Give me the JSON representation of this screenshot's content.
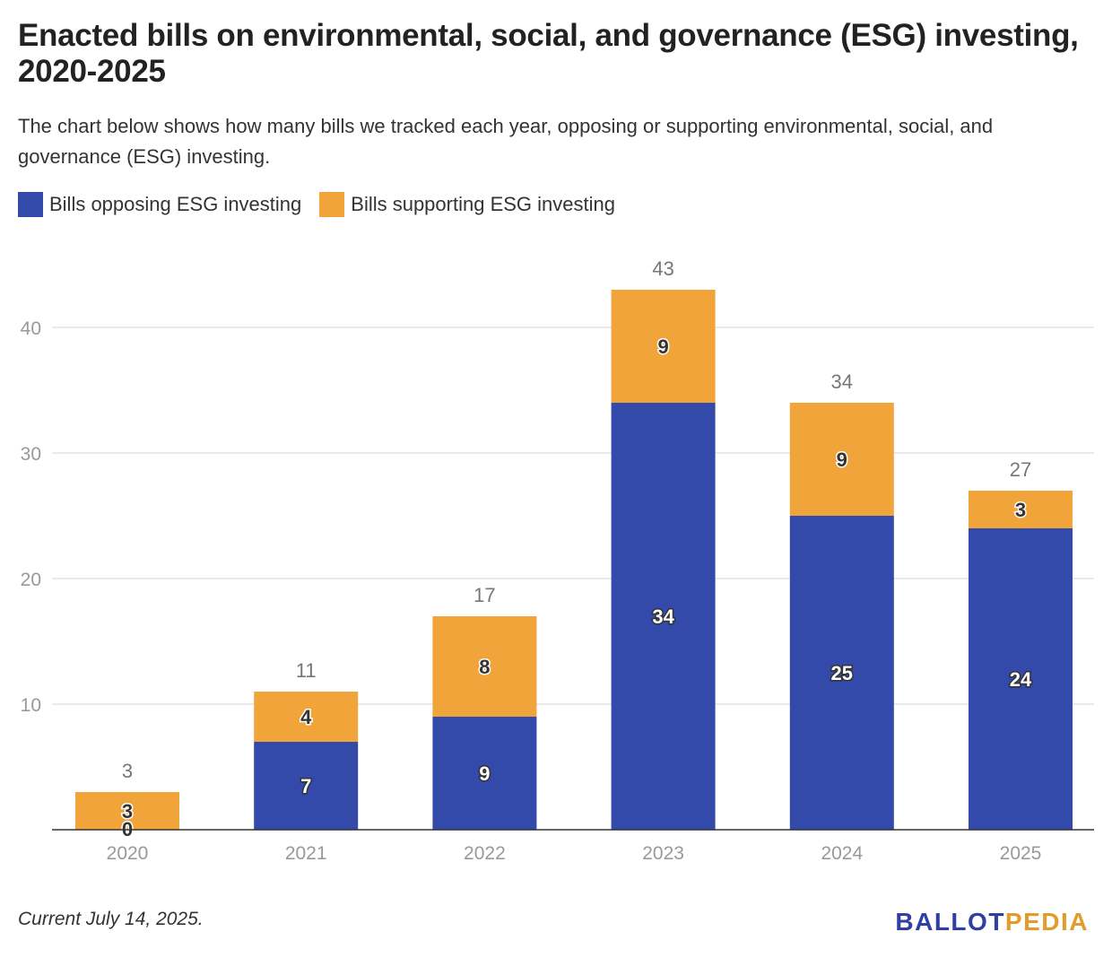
{
  "colors": {
    "opposing": "#334aab",
    "supporting": "#f0a43a",
    "grid": "#e3e3e3",
    "axis_text": "#999999",
    "total_text": "#777777"
  },
  "chart_data": {
    "type": "bar",
    "stacked": true,
    "title": "Enacted bills on environmental, social, and governance (ESG) investing, 2020-2025",
    "subtitle": "The chart below shows how many bills we tracked each year, opposing or supporting environmental, social, and governance (ESG) investing.",
    "categories": [
      "2020",
      "2021",
      "2022",
      "2023",
      "2024",
      "2025"
    ],
    "series": [
      {
        "name": "Bills opposing ESG investing",
        "values": [
          0,
          7,
          9,
          34,
          25,
          24
        ]
      },
      {
        "name": "Bills supporting ESG investing",
        "values": [
          3,
          4,
          8,
          9,
          9,
          3
        ]
      }
    ],
    "totals": [
      3,
      11,
      17,
      43,
      34,
      27
    ],
    "ylim": [
      0,
      43
    ],
    "yticks": [
      10,
      20,
      30,
      40
    ],
    "grid": true,
    "legend": "top-left"
  },
  "footer": {
    "note": "Current July 14, 2025.",
    "logo_part1": "BALLOT",
    "logo_part2": "PEDIA"
  }
}
